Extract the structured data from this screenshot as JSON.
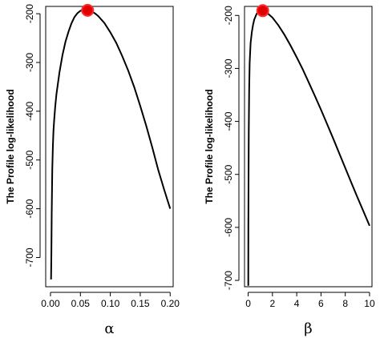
{
  "chart_data": [
    {
      "type": "line",
      "xlabel": "α",
      "ylabel": "The Profile log-likelihood",
      "xlim": [
        -0.008,
        0.205
      ],
      "ylim": [
        -760,
        -185
      ],
      "xticks": [
        0.0,
        0.05,
        0.1,
        0.15,
        0.2
      ],
      "xtick_labels": [
        "0.00",
        "0.05",
        "0.10",
        "0.15",
        "0.20"
      ],
      "yticks": [
        -700,
        -600,
        -500,
        -400,
        -300,
        -200
      ],
      "ytick_labels": [
        "-700",
        "-600",
        "-500",
        "-400",
        "-300",
        "-200"
      ],
      "series": [
        {
          "x": [
            0.001,
            0.0015,
            0.002,
            0.003,
            0.004,
            0.005,
            0.006,
            0.008,
            0.01,
            0.015,
            0.02,
            0.025,
            0.03,
            0.035,
            0.04,
            0.045,
            0.05,
            0.055,
            0.06,
            0.065,
            0.07,
            0.075,
            0.08,
            0.09,
            0.1,
            0.11,
            0.12,
            0.13,
            0.14,
            0.15,
            0.16,
            0.17,
            0.18,
            0.19,
            0.2
          ],
          "y": [
            -745,
            -690,
            -610,
            -520,
            -470,
            -440,
            -420,
            -390,
            -365,
            -320,
            -285,
            -258,
            -237,
            -220,
            -207,
            -199,
            -194,
            -192,
            -192,
            -193,
            -196,
            -200,
            -205,
            -219,
            -238,
            -260,
            -287,
            -317,
            -351,
            -389,
            -430,
            -474,
            -520,
            -561,
            -600
          ]
        }
      ],
      "highlight_point": {
        "x": 0.062,
        "y": -193
      }
    },
    {
      "type": "line",
      "xlabel": "β",
      "ylabel": "The Profile log-likelihood",
      "xlim": [
        -0.3,
        10.2
      ],
      "ylim": [
        -712,
        -183
      ],
      "xticks": [
        0,
        2,
        4,
        6,
        8,
        10
      ],
      "xtick_labels": [
        "0",
        "2",
        "4",
        "6",
        "8",
        "10"
      ],
      "yticks": [
        -700,
        -600,
        -500,
        -400,
        -300,
        -200
      ],
      "ytick_labels": [
        "-700",
        "-600",
        "-500",
        "-400",
        "-300",
        "-200"
      ],
      "series": [
        {
          "x": [
            0.01,
            0.02,
            0.03,
            0.05,
            0.08,
            0.12,
            0.2,
            0.3,
            0.4,
            0.5,
            0.7,
            0.9,
            1.1,
            1.3,
            1.6,
            2.0,
            2.5,
            3.0,
            3.5,
            4.0,
            4.5,
            5.0,
            5.5,
            6.0,
            6.5,
            7.0,
            7.5,
            8.0,
            8.5,
            9.0,
            9.5,
            10.0
          ],
          "y": [
            -710,
            -600,
            -520,
            -420,
            -340,
            -290,
            -252,
            -232,
            -218,
            -208,
            -197,
            -192,
            -191,
            -192,
            -196,
            -204,
            -219,
            -237,
            -257,
            -279,
            -302,
            -327,
            -352,
            -378,
            -405,
            -432,
            -460,
            -488,
            -516,
            -543,
            -570,
            -597
          ]
        }
      ],
      "highlight_point": {
        "x": 1.2,
        "y": -191
      }
    }
  ]
}
